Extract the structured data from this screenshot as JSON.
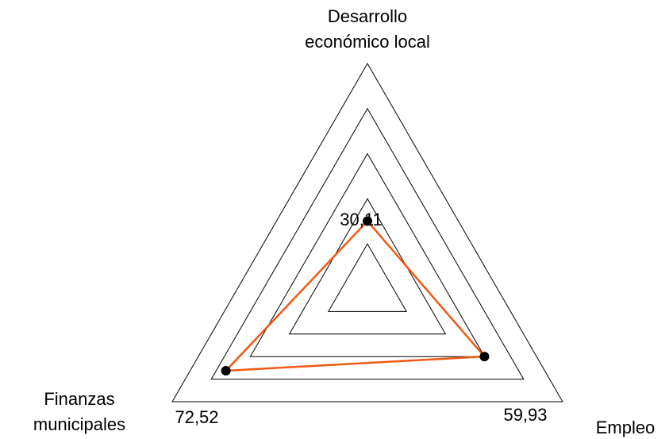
{
  "chart_data": {
    "type": "radar",
    "axes": [
      {
        "label_lines": [
          "Desarrollo",
          "económico local"
        ]
      },
      {
        "label_lines": [
          "Empleo"
        ]
      },
      {
        "label_lines": [
          "Finanzas",
          "municipales"
        ]
      }
    ],
    "series": [
      {
        "values": [
          30.11,
          59.93,
          72.52
        ],
        "labels": [
          "30,11",
          "59,93",
          "72,52"
        ],
        "color": "#ee5a14"
      }
    ],
    "range": [
      0,
      100
    ],
    "grid_levels": [
      20,
      40,
      60,
      80,
      100
    ],
    "point_color": "#000000",
    "grid_color": "#000000"
  }
}
